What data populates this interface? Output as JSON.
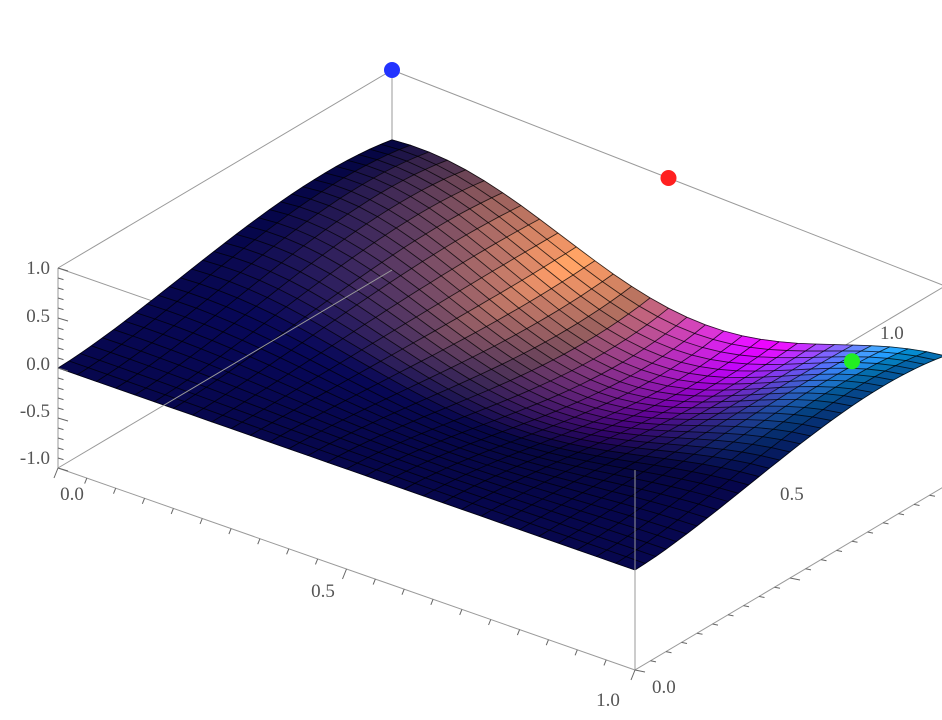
{
  "chart_data": {
    "type": "surface3d",
    "title": "",
    "xlabel": "",
    "ylabel": "",
    "zlabel": "",
    "xlim": [
      0,
      1
    ],
    "ylim": [
      0,
      1
    ],
    "zlim": [
      -1,
      1
    ],
    "x_ticks": [
      "0.0",
      "0.5",
      "1.0"
    ],
    "y_ticks": [
      "0.0",
      "0.5",
      "1.0"
    ],
    "z_ticks": [
      "1.0",
      "0.5",
      "0.0",
      "-0.5",
      "-1.0"
    ],
    "grid": false,
    "box": true,
    "surface_mesh_lines": 30,
    "colors": {
      "blue_light": "#1414ff",
      "orange_light": "#ff9a00",
      "magenta_light": "#ff00ff",
      "cyan_light": "#00e5ff"
    },
    "light_points": [
      {
        "color": "#2233ff",
        "x": 0.0,
        "y": 1.0,
        "z": 1.0
      },
      {
        "color": "#ff2020",
        "x": 0.5,
        "y": 1.0,
        "z": 1.0
      },
      {
        "color": "#22ee22",
        "x": 1.0,
        "y": 0.7,
        "z": 0.8
      }
    ]
  }
}
